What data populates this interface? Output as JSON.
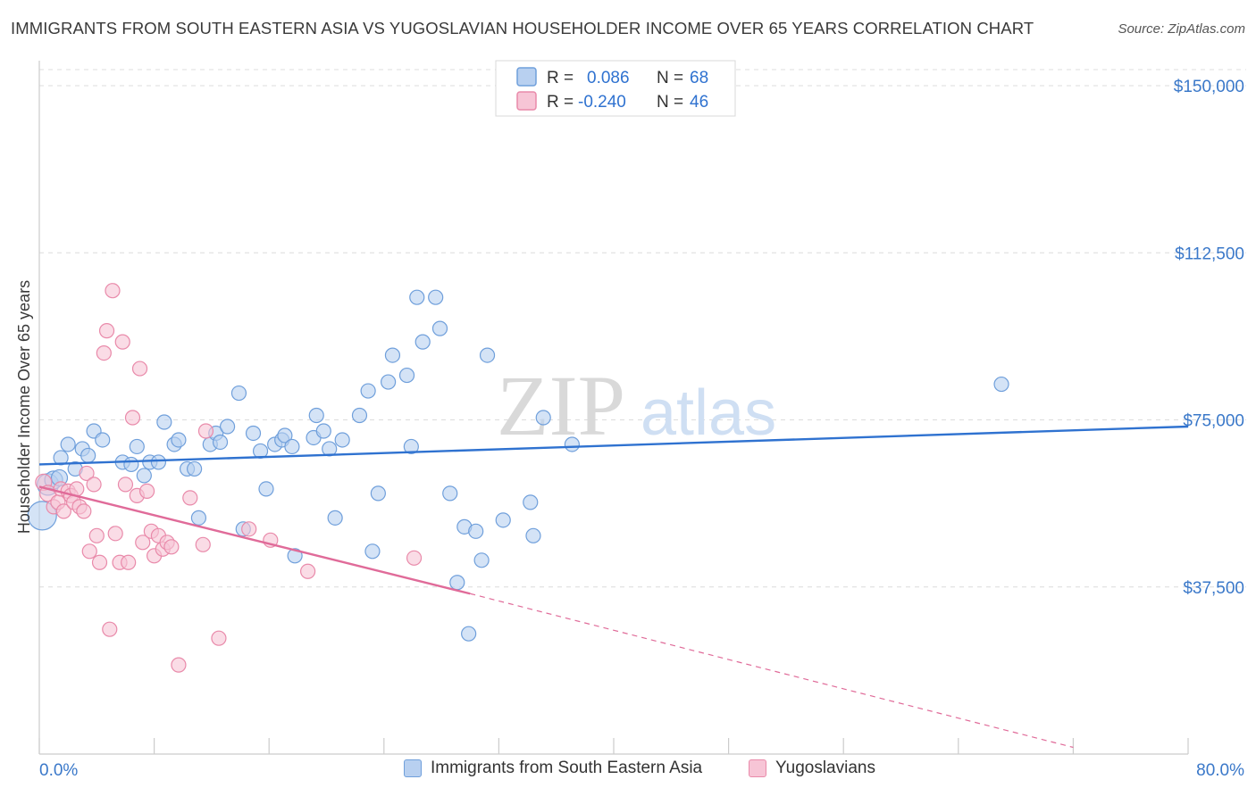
{
  "title": "IMMIGRANTS FROM SOUTH EASTERN ASIA VS YUGOSLAVIAN HOUSEHOLDER INCOME OVER 65 YEARS CORRELATION CHART",
  "source": "Source: ZipAtlas.com",
  "watermark": {
    "zip": "ZIP",
    "atlas": "atlas"
  },
  "colors": {
    "blue_fill": "#b8d0f0",
    "blue_stroke": "#6f9fdb",
    "blue_line": "#2f72d0",
    "pink_fill": "#f7c5d6",
    "pink_stroke": "#e98aaa",
    "pink_line": "#e06b99",
    "tick_label": "#3a78c9",
    "grid": "#dcdcdc"
  },
  "legend_top": {
    "rows": [
      {
        "r_label": "R =",
        "r_value": "0.086",
        "n_label": "N =",
        "n_value": "68",
        "color": "blue"
      },
      {
        "r_label": "R =",
        "r_value": "-0.240",
        "n_label": "N =",
        "n_value": "46",
        "color": "pink"
      }
    ]
  },
  "legend_bottom": [
    {
      "label": "Immigrants from South Eastern Asia",
      "color": "blue"
    },
    {
      "label": "Yugoslavians",
      "color": "pink"
    }
  ],
  "chart_data": {
    "type": "scatter",
    "title": "IMMIGRANTS FROM SOUTH EASTERN ASIA VS YUGOSLAVIAN HOUSEHOLDER INCOME OVER 65 YEARS CORRELATION CHART",
    "xlabel": "",
    "ylabel": "Householder Income Over 65 years",
    "xlim": [
      0,
      80
    ],
    "ylim": [
      0,
      153000
    ],
    "x_tick_labels": [
      "0.0%",
      "80.0%"
    ],
    "y_ticks": [
      37500,
      75000,
      112500,
      150000
    ],
    "y_tick_labels": [
      "$37,500",
      "$75,000",
      "$112,500",
      "$150,000"
    ],
    "grid": "horizontal dashed",
    "legend": "top-center",
    "series": [
      {
        "name": "Immigrants from South Eastern Asia",
        "color": "blue",
        "points": [
          [
            0.2,
            53500,
            16
          ],
          [
            0.6,
            60500,
            12
          ],
          [
            1.0,
            61500,
            10
          ],
          [
            1.4,
            62000,
            9
          ],
          [
            1.5,
            66500,
            8
          ],
          [
            2.0,
            69500,
            8
          ],
          [
            2.5,
            64000,
            8
          ],
          [
            3.0,
            68500,
            8
          ],
          [
            3.8,
            72500,
            8
          ],
          [
            3.4,
            67000,
            8
          ],
          [
            4.4,
            70500,
            8
          ],
          [
            5.8,
            65500,
            8
          ],
          [
            6.4,
            65000,
            8
          ],
          [
            6.8,
            69000,
            8
          ],
          [
            7.3,
            62500,
            8
          ],
          [
            7.7,
            65500,
            8
          ],
          [
            8.3,
            65500,
            8
          ],
          [
            8.7,
            74500,
            8
          ],
          [
            9.4,
            69500,
            8
          ],
          [
            9.7,
            70500,
            8
          ],
          [
            10.3,
            64000,
            8
          ],
          [
            10.8,
            64000,
            8
          ],
          [
            11.1,
            53000,
            8
          ],
          [
            11.9,
            69500,
            8
          ],
          [
            12.3,
            72000,
            8
          ],
          [
            12.6,
            70000,
            8
          ],
          [
            13.1,
            73500,
            8
          ],
          [
            13.9,
            81000,
            8
          ],
          [
            14.2,
            50500,
            8
          ],
          [
            14.9,
            72000,
            8
          ],
          [
            15.4,
            68000,
            8
          ],
          [
            15.8,
            59500,
            8
          ],
          [
            16.4,
            69500,
            8
          ],
          [
            16.9,
            70500,
            8
          ],
          [
            17.1,
            71500,
            8
          ],
          [
            17.6,
            69000,
            8
          ],
          [
            17.8,
            44500,
            8
          ],
          [
            19.1,
            71000,
            8
          ],
          [
            19.3,
            76000,
            8
          ],
          [
            19.8,
            72500,
            8
          ],
          [
            20.2,
            68500,
            8
          ],
          [
            20.6,
            53000,
            8
          ],
          [
            21.1,
            70500,
            8
          ],
          [
            22.3,
            76000,
            8
          ],
          [
            22.9,
            81500,
            8
          ],
          [
            23.2,
            45500,
            8
          ],
          [
            23.6,
            58500,
            8
          ],
          [
            24.3,
            83500,
            8
          ],
          [
            24.6,
            89500,
            8
          ],
          [
            25.6,
            85000,
            8
          ],
          [
            25.9,
            69000,
            8
          ],
          [
            26.3,
            102500,
            8
          ],
          [
            26.7,
            92500,
            8
          ],
          [
            27.6,
            102500,
            8
          ],
          [
            27.9,
            95500,
            8
          ],
          [
            28.6,
            58500,
            8
          ],
          [
            29.1,
            38500,
            8
          ],
          [
            29.6,
            51000,
            8
          ],
          [
            29.9,
            27000,
            8
          ],
          [
            30.4,
            50000,
            8
          ],
          [
            30.8,
            43500,
            8
          ],
          [
            31.2,
            89500,
            8
          ],
          [
            32.3,
            52500,
            8
          ],
          [
            34.2,
            56500,
            8
          ],
          [
            34.4,
            49000,
            8
          ],
          [
            35.1,
            75500,
            8
          ],
          [
            37.1,
            69500,
            8
          ],
          [
            67.0,
            83000,
            8
          ]
        ]
      },
      {
        "name": "Yugoslavians",
        "color": "pink",
        "points": [
          [
            0.3,
            61000,
            9
          ],
          [
            0.6,
            58500,
            9
          ],
          [
            1.0,
            55500,
            8
          ],
          [
            1.3,
            56500,
            8
          ],
          [
            1.5,
            59500,
            8
          ],
          [
            1.7,
            54500,
            8
          ],
          [
            2.0,
            59000,
            8
          ],
          [
            2.2,
            58000,
            8
          ],
          [
            2.4,
            56500,
            8
          ],
          [
            2.6,
            59500,
            8
          ],
          [
            2.8,
            55500,
            8
          ],
          [
            3.1,
            54500,
            8
          ],
          [
            3.3,
            63000,
            8
          ],
          [
            3.5,
            45500,
            8
          ],
          [
            3.8,
            60500,
            8
          ],
          [
            4.0,
            49000,
            8
          ],
          [
            4.2,
            43000,
            8
          ],
          [
            4.5,
            90000,
            8
          ],
          [
            4.7,
            95000,
            8
          ],
          [
            4.9,
            28000,
            8
          ],
          [
            5.1,
            104000,
            8
          ],
          [
            5.3,
            49500,
            8
          ],
          [
            5.6,
            43000,
            8
          ],
          [
            5.8,
            92500,
            8
          ],
          [
            6.0,
            60500,
            8
          ],
          [
            6.2,
            43000,
            8
          ],
          [
            6.5,
            75500,
            8
          ],
          [
            6.8,
            58000,
            8
          ],
          [
            7.0,
            86500,
            8
          ],
          [
            7.2,
            47500,
            8
          ],
          [
            7.5,
            59000,
            8
          ],
          [
            7.8,
            50000,
            8
          ],
          [
            8.0,
            44500,
            8
          ],
          [
            8.3,
            49000,
            8
          ],
          [
            8.6,
            46000,
            8
          ],
          [
            8.9,
            47500,
            8
          ],
          [
            9.2,
            46500,
            8
          ],
          [
            9.7,
            20000,
            8
          ],
          [
            10.5,
            57500,
            8
          ],
          [
            11.4,
            47000,
            8
          ],
          [
            11.6,
            72500,
            8
          ],
          [
            12.5,
            26000,
            8
          ],
          [
            14.6,
            50500,
            8
          ],
          [
            16.1,
            48000,
            8
          ],
          [
            18.7,
            41000,
            8
          ],
          [
            26.1,
            44000,
            8
          ]
        ]
      }
    ],
    "trendlines": [
      {
        "series": "Immigrants from South Eastern Asia",
        "x": [
          0,
          80
        ],
        "y": [
          65000,
          73500
        ],
        "style": "solid"
      },
      {
        "series": "Yugoslavians",
        "x": [
          0,
          30
        ],
        "y": [
          60000,
          36000
        ],
        "style": "solid"
      },
      {
        "series": "Yugoslavians",
        "x": [
          30,
          72
        ],
        "y": [
          36000,
          1500
        ],
        "style": "dashed"
      }
    ]
  }
}
